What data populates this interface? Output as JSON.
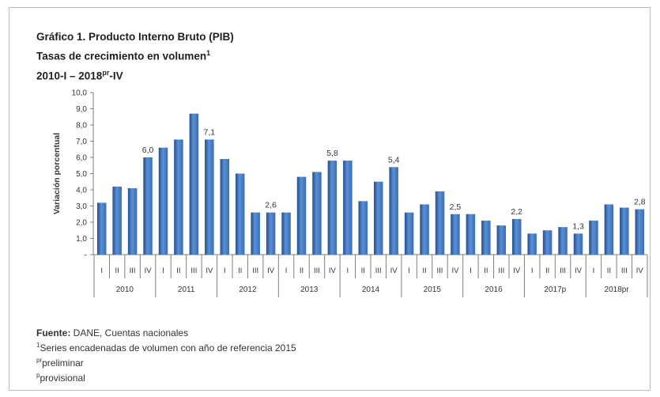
{
  "title": {
    "line1": "Gráfico 1. Producto Interno Bruto (PIB)",
    "line2_text": "Tasas de crecimiento en volumen",
    "line2_sup": "1",
    "line3_a": "2010-I – 2018",
    "line3_sup": "pr",
    "line3_b": "-IV"
  },
  "footer": {
    "source_label": "Fuente:",
    "source_text": " DANE, Cuentas nacionales",
    "note1_sup": "1",
    "note1_text": "Series encadenadas de volumen con año de referencia 2015",
    "note2_sup": "pr",
    "note2_text": "preliminar",
    "note3_sup": "p",
    "note3_text": "provisional"
  },
  "chart_data": {
    "type": "bar",
    "title": "Gráfico 1. Producto Interno Bruto (PIB)",
    "ylabel": "Variación porcentual",
    "ylim": [
      0,
      10
    ],
    "ytick_labels": [
      "-",
      "1,0",
      "2,0",
      "3,0",
      "4,0",
      "5,0",
      "6,0",
      "7,0",
      "8,0",
      "9,0",
      "10,0"
    ],
    "quarter_labels": [
      "I",
      "II",
      "III",
      "IV"
    ],
    "years": [
      "2010",
      "2011",
      "2012",
      "2013",
      "2014",
      "2015",
      "2016",
      "2017p",
      "2018pr"
    ],
    "values": [
      3.2,
      4.2,
      4.1,
      6.0,
      6.6,
      7.1,
      8.7,
      7.1,
      5.9,
      5.0,
      2.6,
      2.6,
      2.6,
      4.8,
      5.1,
      5.8,
      5.8,
      3.3,
      4.5,
      5.4,
      2.6,
      3.1,
      3.9,
      2.5,
      2.5,
      2.1,
      1.8,
      2.2,
      1.3,
      1.5,
      1.7,
      1.3,
      2.1,
      3.1,
      2.9,
      2.8
    ],
    "data_labels": [
      {
        "index": 3,
        "text": "6,0"
      },
      {
        "index": 7,
        "text": "7,1"
      },
      {
        "index": 11,
        "text": "2,6"
      },
      {
        "index": 15,
        "text": "5,8"
      },
      {
        "index": 19,
        "text": "5,4"
      },
      {
        "index": 23,
        "text": "2,5"
      },
      {
        "index": 27,
        "text": "2,2"
      },
      {
        "index": 31,
        "text": "1,3"
      },
      {
        "index": 35,
        "text": "2,8"
      }
    ],
    "bar_color": "#3a6db3",
    "bar_color_light": "#5b8fd6",
    "bar_color_dark": "#234f8c",
    "grid": false,
    "legend": "none"
  }
}
